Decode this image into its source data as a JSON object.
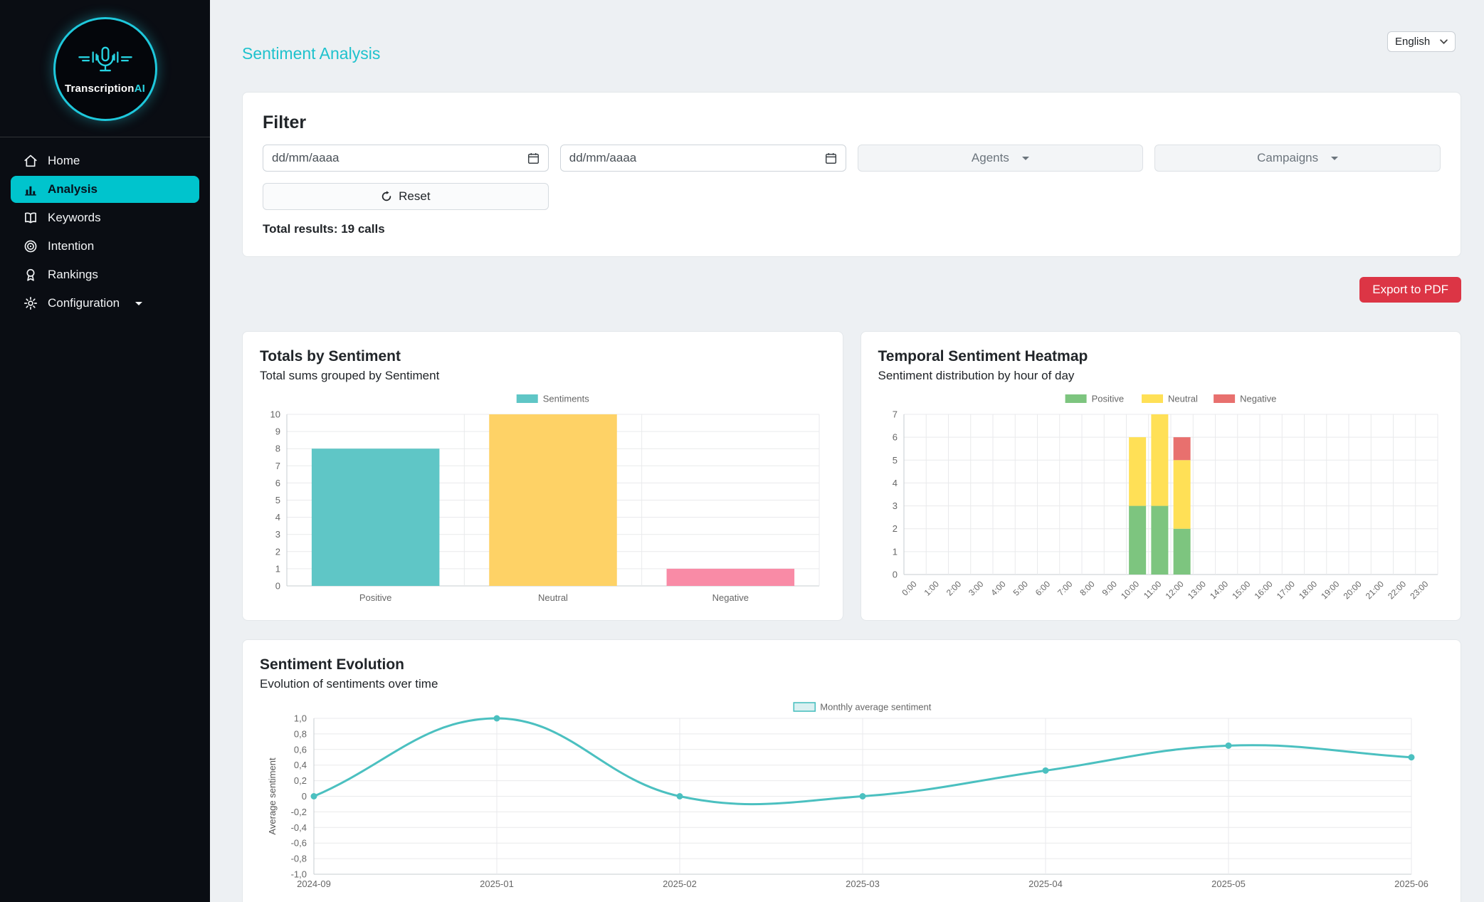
{
  "sidebar": {
    "brand_primary": "Transcription",
    "brand_accent": "AI",
    "items": [
      {
        "label": "Home",
        "icon": "home-icon"
      },
      {
        "label": "Analysis",
        "icon": "bar-chart-icon",
        "active": true
      },
      {
        "label": "Keywords",
        "icon": "book-icon"
      },
      {
        "label": "Intention",
        "icon": "target-icon"
      },
      {
        "label": "Rankings",
        "icon": "award-icon"
      },
      {
        "label": "Configuration",
        "icon": "gear-icon",
        "dropdown": true
      }
    ],
    "accent_color": "#00c4cd"
  },
  "header": {
    "title": "Sentiment Analysis",
    "title_color": "#1fc2cd",
    "language_selector": "English"
  },
  "filter": {
    "heading": "Filter",
    "date_from_placeholder": "dd/mm/aaaa",
    "date_to_placeholder": "dd/mm/aaaa",
    "agents_dropdown": "Agents",
    "campaigns_dropdown": "Campaigns",
    "reset_button": "Reset",
    "total_results": "Total results: 19 calls"
  },
  "actions": {
    "export_pdf": "Export to PDF",
    "export_color": "#dc3545"
  },
  "chart_data": [
    {
      "type": "bar",
      "title": "Totals by Sentiment",
      "subtitle": "Total sums grouped by Sentiment",
      "legend": [
        {
          "label": "Sentiments",
          "color": "#5fc6c6"
        }
      ],
      "legend_position": "top",
      "categories": [
        "Positive",
        "Neutral",
        "Negative"
      ],
      "values": [
        8,
        10,
        1
      ],
      "bar_colors": [
        "#5fc6c6",
        "#fed266",
        "#f98ba6"
      ],
      "ylim": [
        0,
        10
      ],
      "ytick_step": 1,
      "grid": true
    },
    {
      "type": "stacked-bar",
      "title": "Temporal Sentiment Heatmap",
      "subtitle": "Sentiment distribution by hour of day",
      "legend_position": "top",
      "categories": [
        "0:00",
        "1:00",
        "2:00",
        "3:00",
        "4:00",
        "5:00",
        "6:00",
        "7:00",
        "8:00",
        "9:00",
        "10:00",
        "11:00",
        "12:00",
        "13:00",
        "14:00",
        "15:00",
        "16:00",
        "17:00",
        "18:00",
        "19:00",
        "20:00",
        "21:00",
        "22:00",
        "23:00"
      ],
      "series": [
        {
          "name": "Positive",
          "color": "#7dc57f",
          "values": [
            0,
            0,
            0,
            0,
            0,
            0,
            0,
            0,
            0,
            0,
            3,
            3,
            2,
            0,
            0,
            0,
            0,
            0,
            0,
            0,
            0,
            0,
            0,
            0
          ]
        },
        {
          "name": "Neutral",
          "color": "#ffe056",
          "values": [
            0,
            0,
            0,
            0,
            0,
            0,
            0,
            0,
            0,
            0,
            3,
            4,
            3,
            0,
            0,
            0,
            0,
            0,
            0,
            0,
            0,
            0,
            0,
            0
          ]
        },
        {
          "name": "Negative",
          "color": "#e8706e",
          "values": [
            0,
            0,
            0,
            0,
            0,
            0,
            0,
            0,
            0,
            0,
            0,
            0,
            1,
            0,
            0,
            0,
            0,
            0,
            0,
            0,
            0,
            0,
            0,
            0
          ]
        }
      ],
      "ylim": [
        0,
        7
      ],
      "ytick_step": 1,
      "xtick_rotation": -45,
      "grid": true
    },
    {
      "type": "line",
      "title": "Sentiment Evolution",
      "subtitle": "Evolution of sentiments over time",
      "legend": [
        {
          "label": "Monthly average sentiment",
          "color": "#4bc0c0"
        }
      ],
      "legend_position": "top",
      "x": [
        "2024-09",
        "2025-01",
        "2025-02",
        "2025-03",
        "2025-04",
        "2025-05",
        "2025-06"
      ],
      "values": [
        0,
        1.0,
        0,
        0,
        0.33,
        0.65,
        0.5
      ],
      "ylabel": "Average sentiment",
      "ylim": [
        -1,
        1
      ],
      "ytick_step": 0.2,
      "ytick_labels": [
        "1,0",
        "0,8",
        "0,6",
        "0,4",
        "0,2",
        "0",
        "-0,2",
        "-0,4",
        "-0,6",
        "-0,8",
        "-1,0"
      ],
      "line_color": "#4bc0c0",
      "point_color": "#4bc0c0",
      "smooth": true,
      "grid": true
    }
  ]
}
